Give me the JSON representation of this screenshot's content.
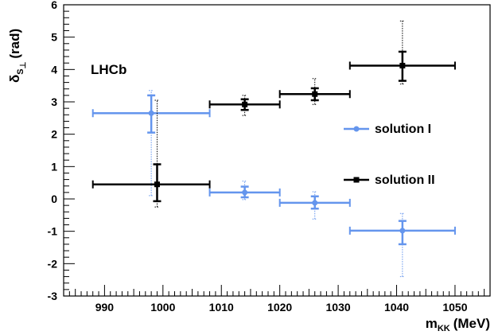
{
  "chart_data": {
    "type": "scatter",
    "title": "",
    "xlabel": "m",
    "xlabel_sub": "KK",
    "xlabel_unit": "(MeV)",
    "ylabel": "δ",
    "ylabel_sub": "S",
    "ylabel_sub2": "⊥",
    "ylabel_unit": "(rad)",
    "annotation": "LHCb",
    "xlim": [
      983,
      1056
    ],
    "ylim": [
      -3,
      6
    ],
    "x_ticks": [
      990,
      1000,
      1010,
      1020,
      1030,
      1040,
      1050
    ],
    "y_ticks": [
      -3,
      -2,
      -1,
      0,
      1,
      2,
      3,
      4,
      5,
      6
    ],
    "grid": false,
    "legend_position": "right",
    "series": [
      {
        "name": "solution I",
        "color": "#6495ed",
        "marker": "circle",
        "points": [
          {
            "x": 998,
            "xlo": 988,
            "xhi": 1008,
            "y": 2.65,
            "stat_lo": 2.05,
            "stat_hi": 3.2,
            "sys_lo": 0.1,
            "sys_hi": 3.35
          },
          {
            "x": 1014,
            "xlo": 1008,
            "xhi": 1020,
            "y": 0.2,
            "stat_lo": 0.05,
            "stat_hi": 0.38,
            "sys_lo": -0.02,
            "sys_hi": 0.55
          },
          {
            "x": 1026,
            "xlo": 1020,
            "xhi": 1032,
            "y": -0.12,
            "stat_lo": -0.3,
            "stat_hi": 0.08,
            "sys_lo": -0.62,
            "sys_hi": 0.22
          },
          {
            "x": 1041,
            "xlo": 1032,
            "xhi": 1050,
            "y": -0.98,
            "stat_lo": -1.4,
            "stat_hi": -0.68,
            "sys_lo": -2.4,
            "sys_hi": -0.45
          }
        ]
      },
      {
        "name": "solution II",
        "color": "#000000",
        "marker": "square",
        "points": [
          {
            "x": 999,
            "xlo": 988,
            "xhi": 1008,
            "y": 0.45,
            "stat_lo": -0.07,
            "stat_hi": 1.07,
            "sys_lo": -0.25,
            "sys_hi": 3.05
          },
          {
            "x": 1014,
            "xlo": 1008,
            "xhi": 1020,
            "y": 2.92,
            "stat_lo": 2.75,
            "stat_hi": 3.08,
            "sys_lo": 2.58,
            "sys_hi": 3.2
          },
          {
            "x": 1026,
            "xlo": 1020,
            "xhi": 1032,
            "y": 3.24,
            "stat_lo": 3.05,
            "stat_hi": 3.42,
            "sys_lo": 2.92,
            "sys_hi": 3.72
          },
          {
            "x": 1041,
            "xlo": 1032,
            "xhi": 1050,
            "y": 4.12,
            "stat_lo": 3.65,
            "stat_hi": 4.55,
            "sys_lo": 3.55,
            "sys_hi": 5.5
          }
        ]
      }
    ]
  }
}
